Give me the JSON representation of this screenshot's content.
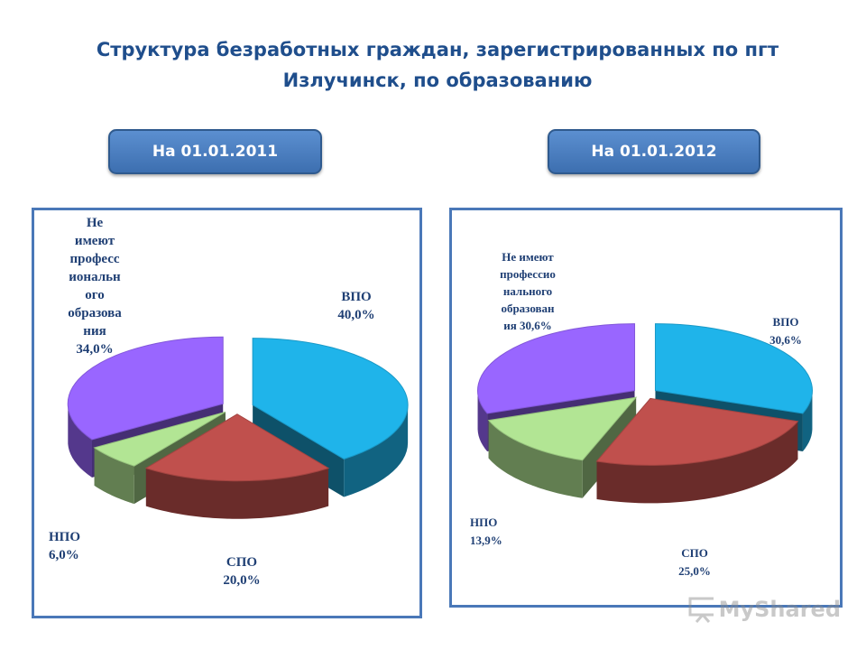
{
  "title": {
    "line1": "Структура безработных граждан, зарегистрированных по пгт",
    "line2": "Излучинск, по образованию"
  },
  "buttons": {
    "date_2011": "На 01.01.2011",
    "date_2012": "На 01.01.2012"
  },
  "watermark": {
    "text": "MyShared"
  },
  "colors": {
    "vpo": "#1fb4ea",
    "spo": "#c0504d",
    "npo": "#b2e594",
    "ne": "#9966ff",
    "accent": "#1f4e8c",
    "button": "#4f81bd"
  },
  "chart_data": [
    {
      "type": "pie",
      "title": "На 01.01.2011",
      "series": [
        {
          "name": "ВПО",
          "value": 40.0,
          "label": "40,0%"
        },
        {
          "name": "СПО",
          "value": 20.0,
          "label": "20,0%"
        },
        {
          "name": "НПО",
          "value": 6.0,
          "label": "6,0%"
        },
        {
          "name": "Не имеют профессионального образования",
          "value": 34.0,
          "label": "34,0%"
        }
      ],
      "label_lines": {
        "vpo": [
          "ВПО",
          "40,0%"
        ],
        "spo": [
          "СПО",
          "20,0%"
        ],
        "npo": [
          "НПО",
          "6,0%"
        ],
        "ne": [
          "Не",
          "имеют",
          "професс",
          "иональн",
          "ого",
          "образова",
          "ния",
          "34,0%"
        ]
      }
    },
    {
      "type": "pie",
      "title": "На 01.01.2012",
      "series": [
        {
          "name": "ВПО",
          "value": 30.6,
          "label": "30,6%"
        },
        {
          "name": "СПО",
          "value": 25.0,
          "label": "25,0%"
        },
        {
          "name": "НПО",
          "value": 13.9,
          "label": "13,9%"
        },
        {
          "name": "Не имеют профессионального образования",
          "value": 30.6,
          "label": "30,6%"
        }
      ],
      "label_lines": {
        "vpo": [
          "ВПО",
          "30,6%"
        ],
        "spo": [
          "СПО",
          "25,0%"
        ],
        "npo": [
          "НПО",
          "13,9%"
        ],
        "ne": [
          "Не имеют",
          "профессио",
          "нального",
          "образован",
          "ия 30,6%"
        ]
      }
    }
  ]
}
